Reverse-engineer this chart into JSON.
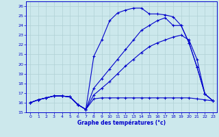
{
  "xlabel": "Graphe des températures (°c)",
  "xlim": [
    -0.5,
    23.5
  ],
  "ylim": [
    15,
    26.5
  ],
  "yticks": [
    15,
    16,
    17,
    18,
    19,
    20,
    21,
    22,
    23,
    24,
    25,
    26
  ],
  "xticks": [
    0,
    1,
    2,
    3,
    4,
    5,
    6,
    7,
    8,
    9,
    10,
    11,
    12,
    13,
    14,
    15,
    16,
    17,
    18,
    19,
    20,
    21,
    22,
    23
  ],
  "bg_color": "#cce8ec",
  "grid_color": "#b0d0d4",
  "line_color": "#0000cc",
  "series": [
    {
      "x": [
        0,
        1,
        2,
        3,
        4,
        5,
        6,
        7,
        8,
        9,
        10,
        11,
        12,
        13,
        14,
        15,
        16,
        17,
        18,
        19,
        20,
        21,
        22,
        23
      ],
      "y": [
        16.0,
        16.3,
        16.5,
        16.7,
        16.7,
        16.6,
        15.8,
        15.3,
        16.4,
        16.5,
        16.5,
        16.5,
        16.5,
        16.5,
        16.5,
        16.5,
        16.5,
        16.5,
        16.5,
        16.5,
        16.5,
        16.4,
        16.3,
        16.2
      ]
    },
    {
      "x": [
        0,
        1,
        2,
        3,
        4,
        5,
        6,
        7,
        8,
        9,
        10,
        11,
        12,
        13,
        14,
        15,
        16,
        17,
        18,
        19,
        20,
        21,
        22,
        23
      ],
      "y": [
        16.0,
        16.3,
        16.5,
        16.7,
        16.7,
        16.6,
        15.8,
        15.3,
        16.8,
        17.5,
        18.2,
        19.0,
        19.8,
        20.5,
        21.2,
        21.8,
        22.2,
        22.5,
        22.8,
        23.0,
        22.5,
        20.5,
        16.9,
        16.2
      ]
    },
    {
      "x": [
        0,
        1,
        2,
        3,
        4,
        5,
        6,
        7,
        8,
        9,
        10,
        11,
        12,
        13,
        14,
        15,
        16,
        17,
        18,
        19,
        20,
        21,
        22,
        23
      ],
      "y": [
        16.0,
        16.3,
        16.5,
        16.7,
        16.7,
        16.6,
        15.8,
        15.3,
        17.5,
        18.5,
        19.5,
        20.5,
        21.5,
        22.5,
        23.5,
        24.0,
        24.5,
        24.8,
        24.0,
        24.0,
        22.2,
        19.7,
        16.9,
        16.2
      ]
    },
    {
      "x": [
        0,
        1,
        2,
        3,
        4,
        5,
        6,
        7,
        8,
        9,
        10,
        11,
        12,
        13,
        14,
        15,
        16,
        17,
        18,
        19,
        20,
        21,
        22,
        23
      ],
      "y": [
        16.0,
        16.3,
        16.5,
        16.7,
        16.7,
        16.6,
        15.8,
        15.3,
        20.8,
        22.5,
        24.5,
        25.3,
        25.6,
        25.8,
        25.8,
        25.2,
        25.2,
        25.1,
        24.9,
        24.0,
        22.2,
        19.7,
        16.9,
        16.2
      ]
    }
  ]
}
